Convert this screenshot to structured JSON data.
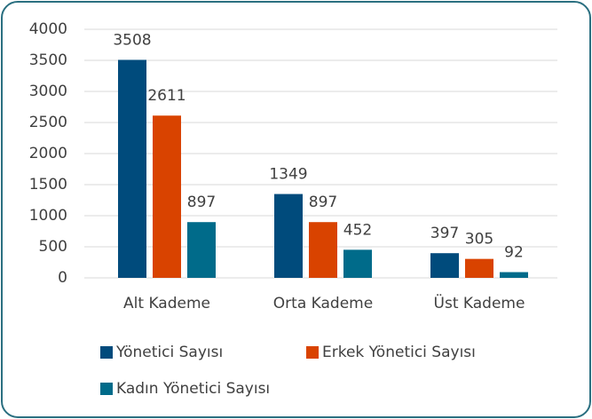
{
  "chart_data": {
    "type": "bar",
    "categories": [
      "Alt Kademe",
      "Orta Kademe",
      "Üst Kademe"
    ],
    "series": [
      {
        "name": "Yönetici Sayısı",
        "color": "#004b7c",
        "values": [
          3508,
          1349,
          397
        ]
      },
      {
        "name": "Erkek Yönetici Sayısı",
        "color": "#d94300",
        "values": [
          2611,
          897,
          305
        ]
      },
      {
        "name": "Kadın Yönetici Sayısı",
        "color": "#006b8a",
        "values": [
          897,
          452,
          92
        ]
      }
    ],
    "ylim": [
      0,
      4000
    ],
    "yticks": [
      0,
      500,
      1000,
      1500,
      2000,
      2500,
      3000,
      3500,
      4000
    ],
    "grid": true,
    "legend": "bottom"
  }
}
